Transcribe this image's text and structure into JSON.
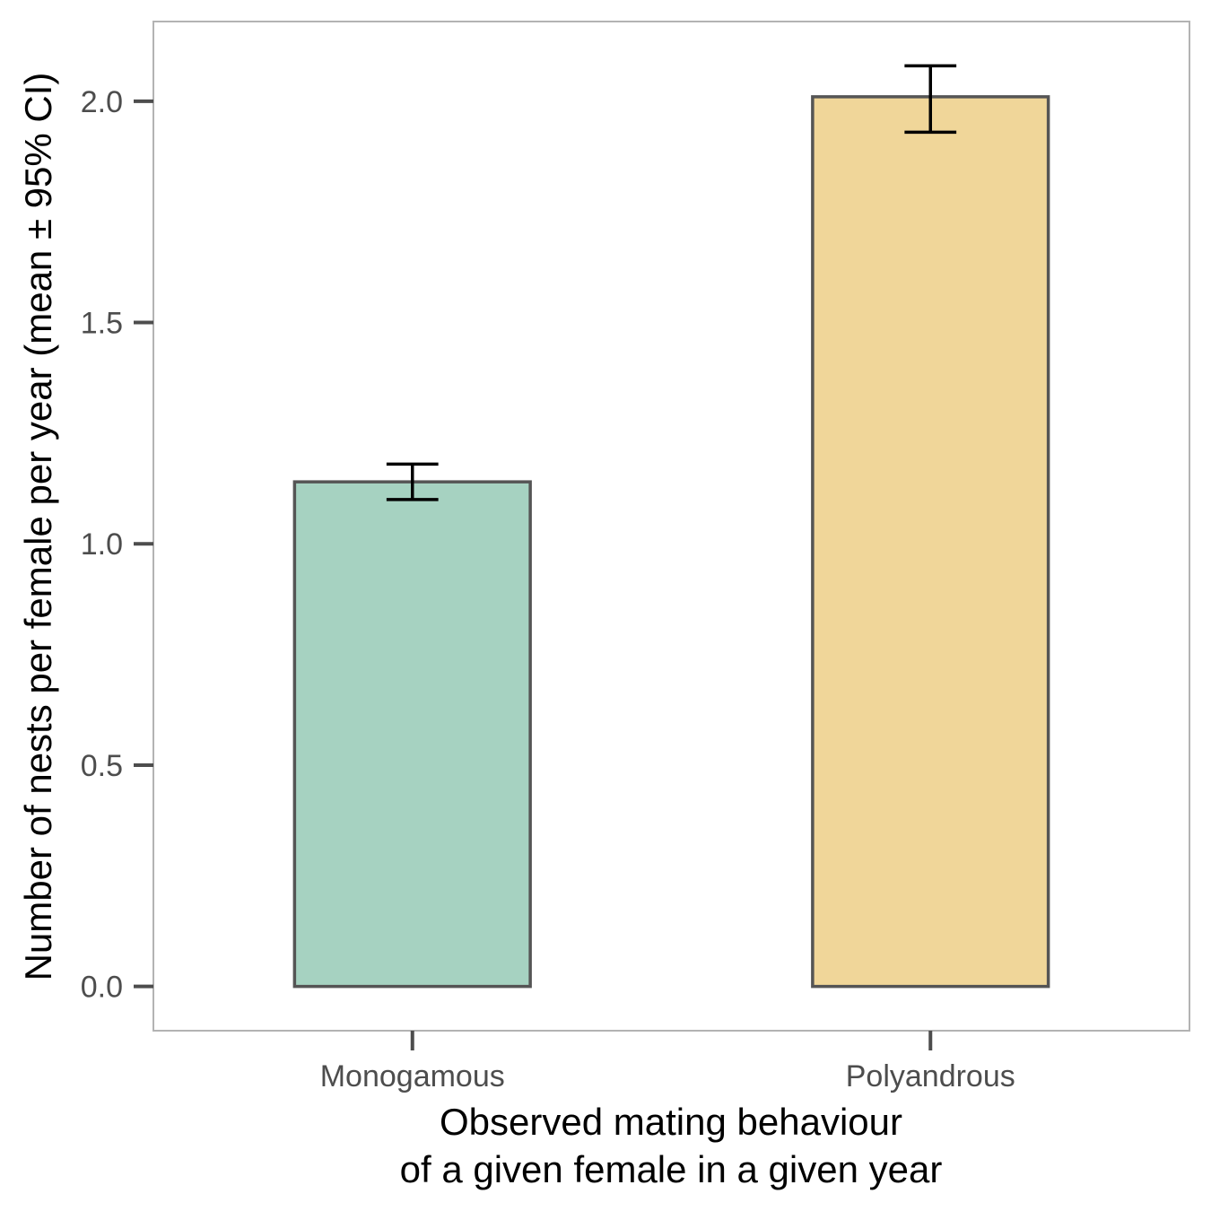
{
  "chart_data": {
    "type": "bar",
    "categories": [
      "Monogamous",
      "Polyandrous"
    ],
    "values": [
      1.14,
      2.01
    ],
    "error_bars": [
      {
        "lower": 1.1,
        "upper": 1.18
      },
      {
        "lower": 1.93,
        "upper": 2.08
      }
    ],
    "colors": [
      "#a6d2c1",
      "#f0d699"
    ],
    "bar_edge_color": "#555555",
    "xlabel_lines": [
      "Observed mating behaviour",
      "of a given female in a given year"
    ],
    "ylabel": "Number of nests per female per year (mean ± 95% CI)",
    "ylim": [
      -0.1,
      2.18
    ],
    "yticks": [
      0.0,
      0.5,
      1.0,
      1.5,
      2.0
    ],
    "ytick_labels": [
      "0.0",
      "0.5",
      "1.0",
      "1.5",
      "2.0"
    ],
    "grid": false,
    "legend": "none"
  }
}
